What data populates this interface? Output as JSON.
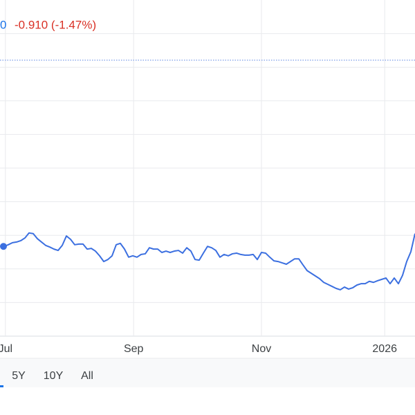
{
  "chart_data": {
    "type": "line",
    "price_partial": "0",
    "change": "-0.910 (-1.47%)",
    "series": [
      {
        "color": "#3b6fe0",
        "values": [
          2.67,
          2.72,
          2.78,
          2.8,
          2.84,
          2.92,
          3.07,
          3.05,
          2.9,
          2.8,
          2.7,
          2.65,
          2.59,
          2.55,
          2.7,
          2.98,
          2.88,
          2.72,
          2.74,
          2.74,
          2.59,
          2.61,
          2.53,
          2.39,
          2.22,
          2.28,
          2.39,
          2.72,
          2.76,
          2.59,
          2.35,
          2.39,
          2.35,
          2.43,
          2.45,
          2.63,
          2.59,
          2.59,
          2.49,
          2.53,
          2.49,
          2.53,
          2.55,
          2.47,
          2.63,
          2.53,
          2.28,
          2.26,
          2.47,
          2.67,
          2.63,
          2.55,
          2.35,
          2.43,
          2.39,
          2.45,
          2.47,
          2.43,
          2.41,
          2.41,
          2.43,
          2.28,
          2.49,
          2.47,
          2.35,
          2.24,
          2.22,
          2.18,
          2.14,
          2.22,
          2.3,
          2.3,
          2.12,
          1.95,
          1.87,
          1.79,
          1.71,
          1.6,
          1.54,
          1.48,
          1.42,
          1.38,
          1.46,
          1.4,
          1.44,
          1.52,
          1.56,
          1.56,
          1.63,
          1.6,
          1.65,
          1.69,
          1.73,
          1.56,
          1.73,
          1.56,
          1.81,
          2.22,
          2.51,
          3.05
        ]
      }
    ],
    "xlim": [
      -1,
      99
    ],
    "xticks": [
      {
        "value": 0.3,
        "label": "Jul"
      },
      {
        "value": 31.2,
        "label": "Sep"
      },
      {
        "value": 62,
        "label": "Nov"
      },
      {
        "value": 91.7,
        "label": "2026"
      }
    ],
    "ylim": [
      0,
      10
    ],
    "yticks": [
      1,
      2,
      3,
      4,
      5,
      6,
      7,
      8,
      9
    ],
    "grid": true,
    "reference_line": 8.21,
    "reference_color": "#7a9be8",
    "range_buttons": [
      "5Y",
      "10Y",
      "All"
    ]
  }
}
